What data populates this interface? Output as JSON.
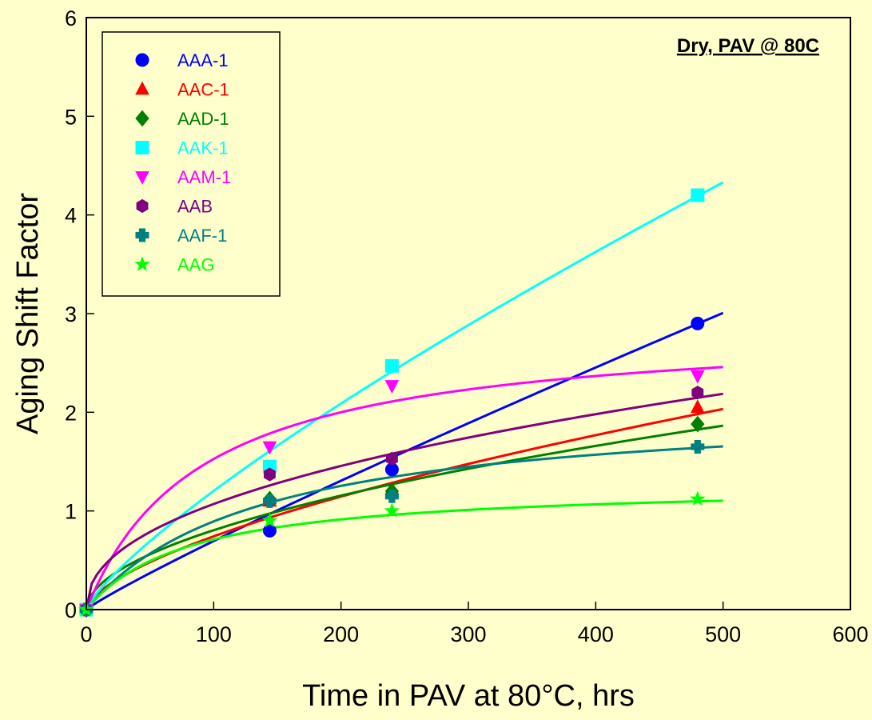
{
  "chart_data": {
    "type": "scatter",
    "title": "Dry, PAV @ 80C",
    "xlabel": "Time in PAV at 80°C, hrs",
    "ylabel": "Aging Shift Factor",
    "xlim": [
      0,
      600
    ],
    "ylim": [
      0,
      6
    ],
    "xticks": [
      0,
      100,
      200,
      300,
      400,
      500,
      600
    ],
    "yticks": [
      0,
      1,
      2,
      3,
      4,
      5,
      6
    ],
    "grid": false,
    "legend_position": "top-left",
    "series": [
      {
        "name": "AAA-1",
        "color": "#0000ff",
        "marker": "circle",
        "points": [
          [
            0,
            0
          ],
          [
            144,
            0.8
          ],
          [
            240,
            1.42
          ],
          [
            480,
            2.9
          ]
        ],
        "fit": {
          "model": "power",
          "a": 0.01052,
          "b": 0.91,
          "xmax": 500
        }
      },
      {
        "name": "AAC-1",
        "color": "#ff0000",
        "marker": "triangle-up",
        "points": [
          [
            0,
            0
          ],
          [
            144,
            1.1
          ],
          [
            240,
            1.22
          ],
          [
            480,
            2.05
          ]
        ],
        "fit": {
          "model": "power",
          "a": 0.04155,
          "b": 0.626,
          "xmax": 500
        }
      },
      {
        "name": "AAD-1",
        "color": "#008000",
        "marker": "diamond",
        "points": [
          [
            0,
            0
          ],
          [
            144,
            1.12
          ],
          [
            240,
            1.2
          ],
          [
            480,
            1.88
          ]
        ],
        "fit": {
          "model": "power",
          "a": 0.0727,
          "b": 0.522,
          "xmax": 500
        }
      },
      {
        "name": "AAK-1",
        "color": "#00ffff",
        "marker": "square",
        "points": [
          [
            0,
            0
          ],
          [
            144,
            1.45
          ],
          [
            240,
            2.47
          ],
          [
            480,
            4.2
          ]
        ],
        "fit": {
          "model": "power",
          "a": 0.03077,
          "b": 0.796,
          "xmax": 500
        }
      },
      {
        "name": "AAM-1",
        "color": "#ff00ff",
        "marker": "triangle-down",
        "points": [
          [
            0,
            0
          ],
          [
            144,
            1.65
          ],
          [
            240,
            2.27
          ],
          [
            480,
            2.37
          ]
        ],
        "fit": {
          "model": "hyperbolic",
          "a": 2.9,
          "k": 90,
          "xmax": 500
        }
      },
      {
        "name": "AAB",
        "color": "#800080",
        "marker": "hexagon",
        "points": [
          [
            0,
            0
          ],
          [
            144,
            1.37
          ],
          [
            240,
            1.53
          ],
          [
            480,
            2.2
          ]
        ],
        "fit": {
          "model": "power",
          "a": 0.1385,
          "b": 0.444,
          "xmax": 500
        }
      },
      {
        "name": "AAF-1",
        "color": "#008080",
        "marker": "plus",
        "points": [
          [
            0,
            0
          ],
          [
            144,
            1.1
          ],
          [
            240,
            1.15
          ],
          [
            480,
            1.65
          ]
        ],
        "fit": {
          "model": "hyperbolic",
          "a": 2.1,
          "k": 135,
          "xmax": 500
        }
      },
      {
        "name": "AAG",
        "color": "#00ff00",
        "marker": "star",
        "points": [
          [
            0,
            0
          ],
          [
            144,
            0.9
          ],
          [
            240,
            1.0
          ],
          [
            480,
            1.12
          ]
        ],
        "fit": {
          "model": "hyperbolic",
          "a": 1.28,
          "k": 80,
          "xmax": 500
        }
      }
    ]
  }
}
